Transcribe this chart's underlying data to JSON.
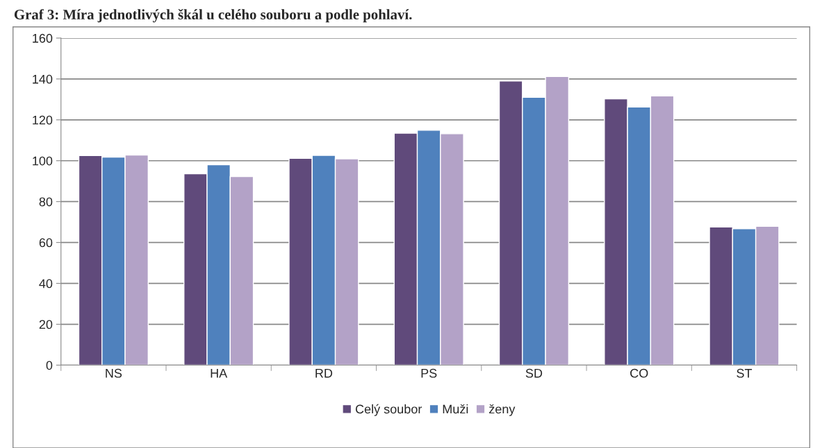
{
  "chart_data": {
    "type": "bar",
    "title": "Graf 3: Míra jednotlivých škál u celého souboru a podle pohlaví.",
    "categories": [
      "NS",
      "HA",
      "RD",
      "PS",
      "SD",
      "CO",
      "ST"
    ],
    "series": [
      {
        "name": "Celý soubor",
        "color": "#604a7b",
        "values": [
          102.5,
          93.6,
          101.2,
          113.5,
          139,
          130.3,
          67.6
        ]
      },
      {
        "name": "Muži",
        "color": "#4f81bd",
        "values": [
          101.8,
          98,
          102.6,
          114.9,
          131,
          126.3,
          66.7
        ]
      },
      {
        "name": "ženy",
        "color": "#b3a2c7",
        "values": [
          102.8,
          92.3,
          100.9,
          113.2,
          141.2,
          131.7,
          67.9
        ]
      }
    ],
    "ylim": [
      0,
      160
    ],
    "yticks": [
      0,
      20,
      40,
      60,
      80,
      100,
      120,
      140,
      160
    ],
    "grid": "y",
    "legend": "bottom"
  }
}
